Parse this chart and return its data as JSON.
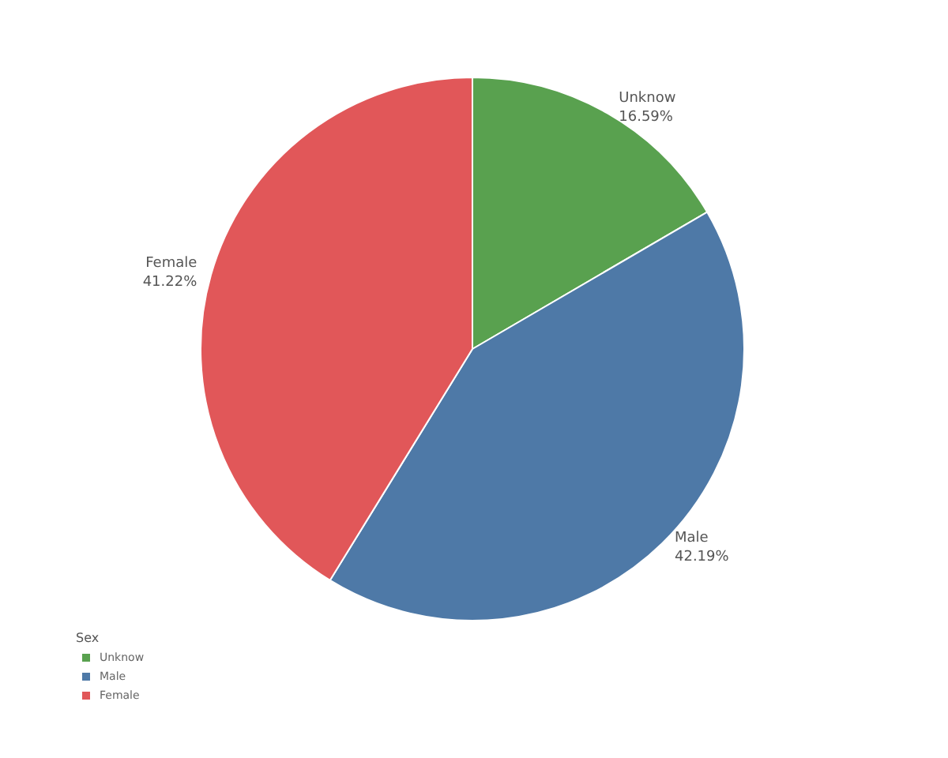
{
  "chart_data": {
    "type": "pie",
    "legend_title": "Sex",
    "legend": "bottom left",
    "categories": [
      "Unknow",
      "Male",
      "Female"
    ],
    "values": [
      16.59,
      42.19,
      41.22
    ],
    "colors": [
      "#59a14f",
      "#4e79a7",
      "#e15759"
    ],
    "value_labels": [
      "16.59%",
      "42.19%",
      "41.22%"
    ]
  }
}
